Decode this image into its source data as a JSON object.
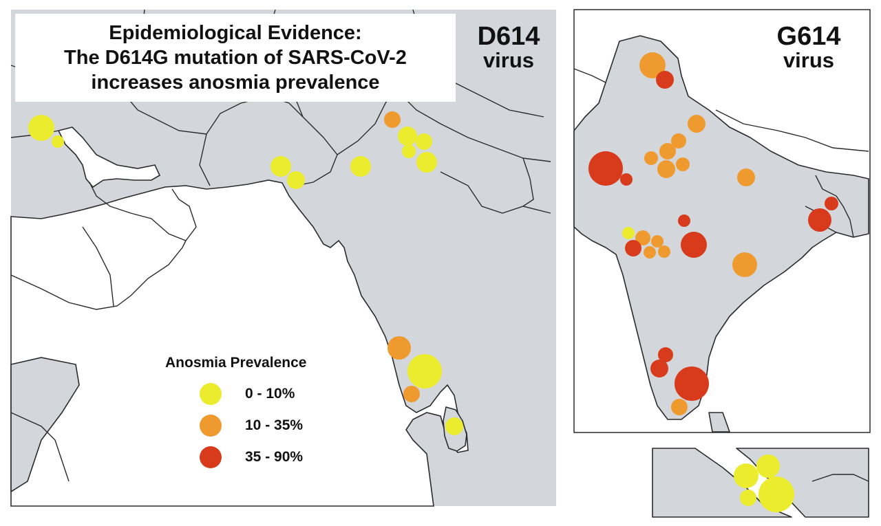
{
  "title": {
    "line1": "Epidemiological Evidence:",
    "line2": "The D614G mutation of SARS-CoV-2",
    "line3": "increases anosmia prevalence"
  },
  "panels": {
    "left": {
      "name": "D614",
      "sub": "virus"
    },
    "right": {
      "name": "G614",
      "sub": "virus"
    }
  },
  "legend": {
    "title": "Anosmia Prevalence",
    "items": [
      {
        "label": "0 - 10%",
        "color": "#ecec2e"
      },
      {
        "label": "10 - 35%",
        "color": "#ef9a2f"
      },
      {
        "label": "35 - 90%",
        "color": "#d83a1c"
      }
    ]
  },
  "colors": {
    "land": "#d3d7db",
    "sea": "#ffffff",
    "low": "#ecec2e",
    "mid": "#ef9a2f",
    "high": "#d83a1c"
  }
}
